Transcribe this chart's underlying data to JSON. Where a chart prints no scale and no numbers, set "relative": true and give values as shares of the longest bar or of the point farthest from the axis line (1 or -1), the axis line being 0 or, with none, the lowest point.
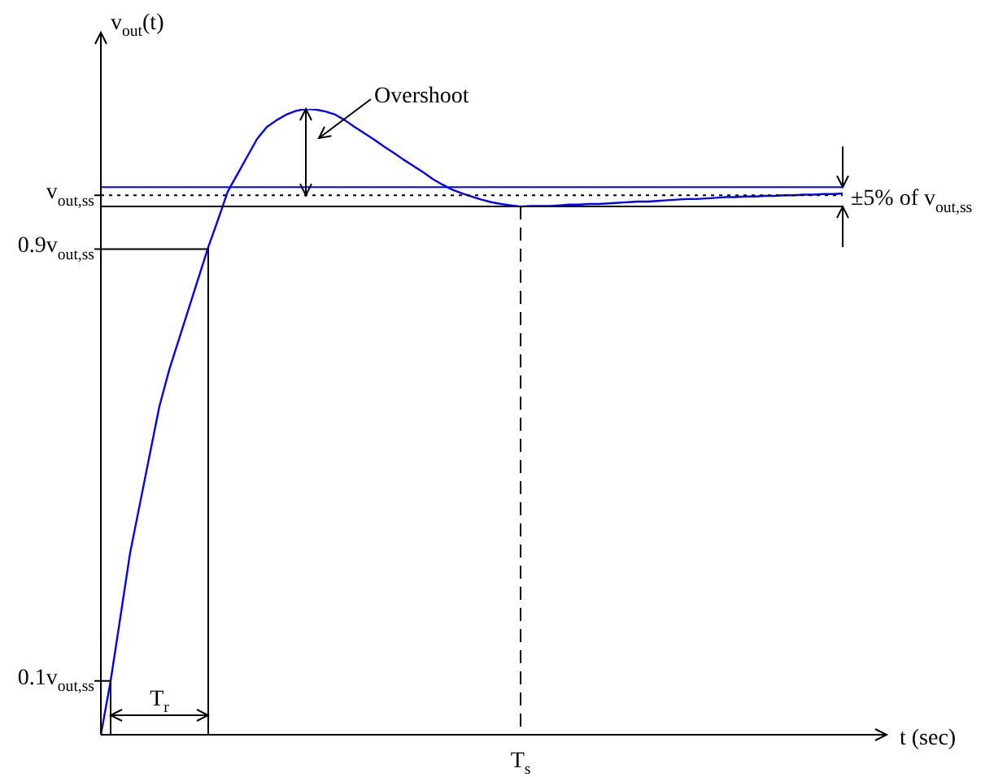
{
  "chart_data": {
    "type": "line",
    "relative": true,
    "xlabel": "t (sec)",
    "ylabel": "v$_{out}$(t)",
    "legend": false,
    "marker": "none",
    "line_style": "solid",
    "categories": [
      null,
      null,
      null,
      null,
      null,
      null,
      null,
      null,
      null,
      null,
      null,
      null,
      null,
      null,
      null,
      null,
      null,
      null,
      null,
      null,
      null,
      null,
      null,
      null,
      null,
      null,
      null,
      null,
      null,
      null,
      null,
      null,
      null,
      null,
      null,
      null,
      null,
      null,
      null,
      null,
      null,
      null,
      null,
      null,
      null,
      null,
      null,
      null,
      null,
      null,
      null,
      null,
      null,
      null,
      null,
      null,
      null,
      null,
      null,
      null,
      null,
      null,
      null,
      null,
      null,
      null,
      null,
      null,
      null,
      null,
      null,
      null,
      null,
      null,
      null,
      null,
      null
    ],
    "series": [
      {
        "color": "#0000ff",
        "values": [
          0,
          0.086,
          0.188,
          0.291,
          0.369,
          0.447,
          0.525,
          0.583,
          0.632,
          0.681,
          0.73,
          0.779,
          0.823,
          0.868,
          0.896,
          0.924,
          0.952,
          0.971,
          0.982,
          0.991,
          0.997,
          1.0,
          0.999,
          0.996,
          0.991,
          0.982,
          0.971,
          0.961,
          0.951,
          0.94,
          0.93,
          0.919,
          0.909,
          0.899,
          0.888,
          0.879,
          0.871,
          0.865,
          0.86,
          0.855,
          0.851,
          0.848,
          0.846,
          0.844,
          0.845,
          0.845,
          0.845,
          0.846,
          0.847,
          0.847,
          0.848,
          0.848,
          0.849,
          0.85,
          0.851,
          0.852,
          0.852,
          0.853,
          0.854,
          0.855,
          0.856,
          0.856,
          0.857,
          0.858,
          0.859,
          0.859,
          0.86,
          0.86,
          0.861,
          0.861,
          0.862,
          0.862,
          0.863,
          0.863,
          0.864,
          0.864,
          0.865
        ]
      }
    ],
    "ref_lines": [
      {
        "axis": "y",
        "value": 0.875,
        "color": "#0000ff",
        "line_style": "solid"
      },
      {
        "axis": "y",
        "value": 0.844,
        "color": "#000000",
        "line_style": "solid"
      },
      {
        "axis": "y",
        "value": 0.862,
        "color": "#000000",
        "line_style": "dotted",
        "label": "v$_{out,ss}$"
      },
      {
        "axis": "y",
        "value": 0.776,
        "color": "#000000",
        "line_style": "solid",
        "label": "0.9v$_{out,ss}$"
      },
      {
        "axis": "y",
        "value": 0.086,
        "color": "#000000",
        "line_style": "solid",
        "label": "0.1v$_{out,ss}$"
      }
    ],
    "annotations": [
      "Overshoot",
      "T$_{r}$",
      "±5% of v$_{out,ss}$",
      "T$_{s}$"
    ]
  }
}
